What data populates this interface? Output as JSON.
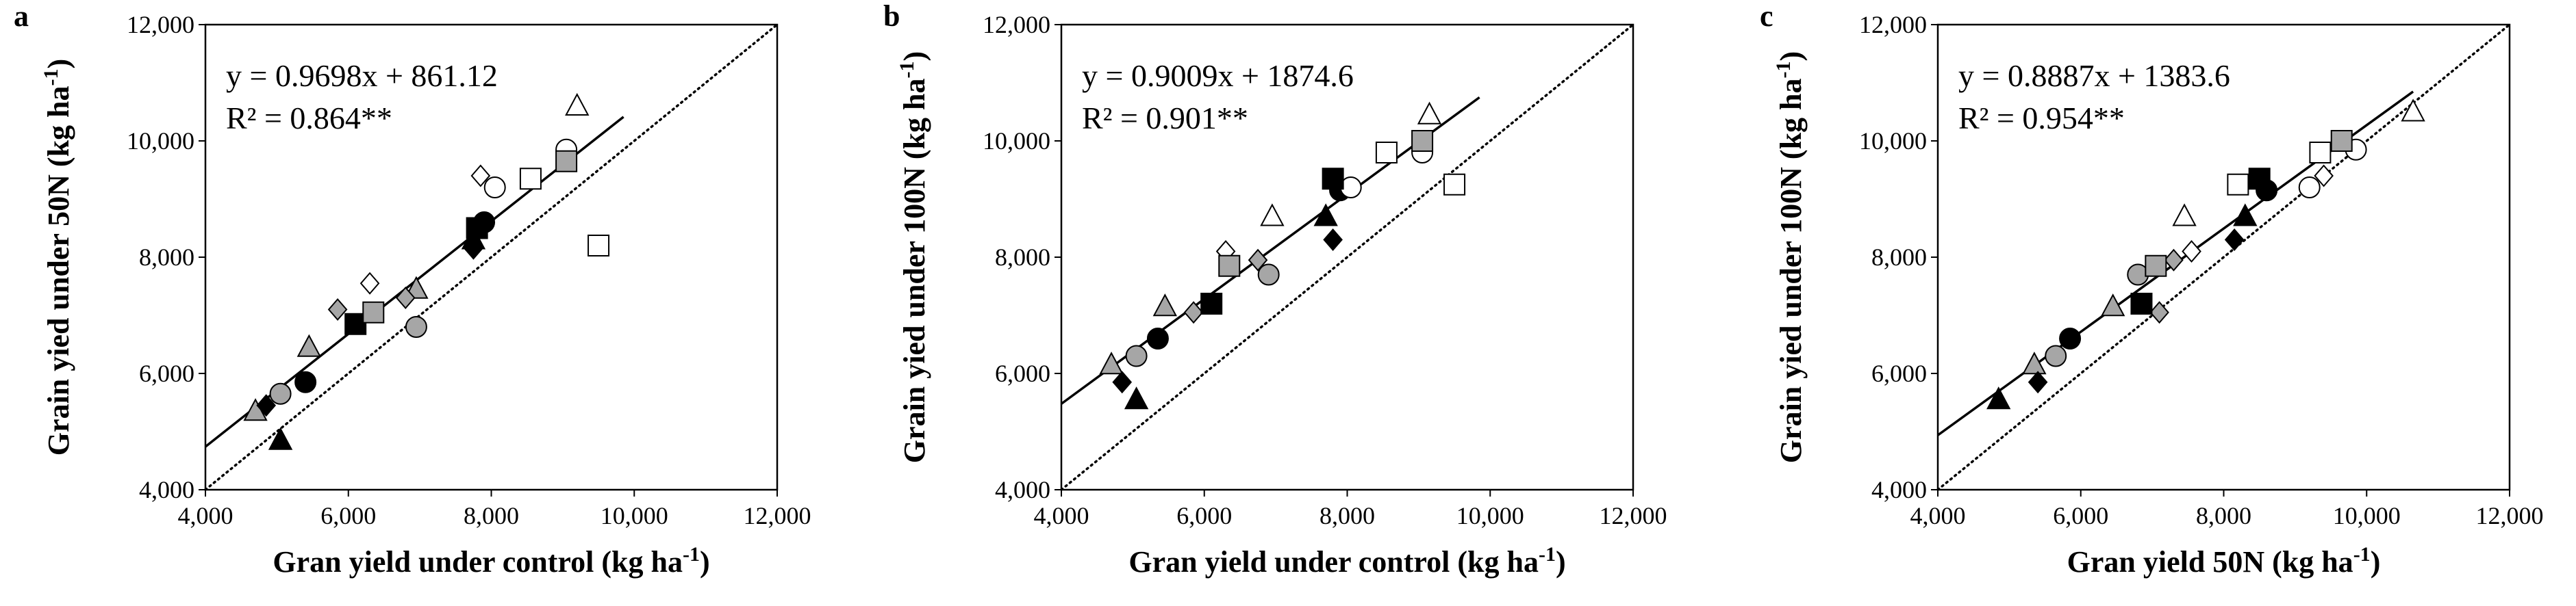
{
  "chart_data": [
    {
      "type": "scatter",
      "panel": "a",
      "xlabel": "Gran yield under control (kg ha",
      "ylabel": "Grain yied under 50N (kg ha",
      "unit_sup": "-1",
      "unit_close": ")",
      "xlim": [
        4000,
        12000
      ],
      "ylim": [
        4000,
        12000
      ],
      "xticks": [
        "4,000",
        "6,000",
        "8,000",
        "10,000",
        "12,000"
      ],
      "yticks": [
        "4,000",
        "6,000",
        "8,000",
        "10,000",
        "12,000"
      ],
      "grid": false,
      "equation": "y = 0.9698x + 861.12",
      "r2": "R² = 0.864**",
      "regression": {
        "slope": 0.9698,
        "intercept": 861.12,
        "x_range": [
          4000,
          9850
        ]
      },
      "reference_line": "1:1",
      "points": [
        {
          "x": 4700,
          "y": 5350,
          "marker": "triangle",
          "fill": "#a6a6a6"
        },
        {
          "x": 5050,
          "y": 4850,
          "marker": "triangle",
          "fill": "#000000"
        },
        {
          "x": 5450,
          "y": 6450,
          "marker": "triangle",
          "fill": "#a6a6a6"
        },
        {
          "x": 6950,
          "y": 7450,
          "marker": "triangle",
          "fill": "#a6a6a6"
        },
        {
          "x": 7750,
          "y": 8300,
          "marker": "triangle",
          "fill": "#000000"
        },
        {
          "x": 9200,
          "y": 10600,
          "marker": "triangle",
          "fill": "#ffffff"
        },
        {
          "x": 4850,
          "y": 5450,
          "marker": "diamond",
          "fill": "#000000"
        },
        {
          "x": 5850,
          "y": 7100,
          "marker": "diamond",
          "fill": "#a6a6a6"
        },
        {
          "x": 6300,
          "y": 7550,
          "marker": "diamond",
          "fill": "#ffffff"
        },
        {
          "x": 6800,
          "y": 7300,
          "marker": "diamond",
          "fill": "#a6a6a6"
        },
        {
          "x": 7750,
          "y": 8150,
          "marker": "diamond",
          "fill": "#000000"
        },
        {
          "x": 7850,
          "y": 9400,
          "marker": "diamond",
          "fill": "#ffffff"
        },
        {
          "x": 5050,
          "y": 5650,
          "marker": "circle",
          "fill": "#a6a6a6"
        },
        {
          "x": 5400,
          "y": 5850,
          "marker": "circle",
          "fill": "#000000"
        },
        {
          "x": 6950,
          "y": 6800,
          "marker": "circle",
          "fill": "#a6a6a6"
        },
        {
          "x": 7900,
          "y": 8600,
          "marker": "circle",
          "fill": "#000000"
        },
        {
          "x": 8050,
          "y": 9200,
          "marker": "circle",
          "fill": "#ffffff"
        },
        {
          "x": 9050,
          "y": 9850,
          "marker": "circle",
          "fill": "#ffffff"
        },
        {
          "x": 6100,
          "y": 6850,
          "marker": "square",
          "fill": "#000000"
        },
        {
          "x": 6350,
          "y": 7050,
          "marker": "square",
          "fill": "#a6a6a6"
        },
        {
          "x": 7800,
          "y": 8500,
          "marker": "square",
          "fill": "#000000"
        },
        {
          "x": 8550,
          "y": 9350,
          "marker": "square",
          "fill": "#ffffff"
        },
        {
          "x": 9050,
          "y": 9650,
          "marker": "square",
          "fill": "#a6a6a6"
        },
        {
          "x": 9500,
          "y": 8200,
          "marker": "square",
          "fill": "#ffffff"
        }
      ]
    },
    {
      "type": "scatter",
      "panel": "b",
      "xlabel": "Gran yield under control (kg ha",
      "ylabel": "Grain yied under 100N (kg ha",
      "unit_sup": "-1",
      "unit_close": ")",
      "xlim": [
        4000,
        12000
      ],
      "ylim": [
        4000,
        12000
      ],
      "xticks": [
        "4,000",
        "6,000",
        "8,000",
        "10,000",
        "12,000"
      ],
      "yticks": [
        "4,000",
        "6,000",
        "8,000",
        "10,000",
        "12,000"
      ],
      "grid": false,
      "equation": "y = 0.9009x + 1874.6",
      "r2": "R² = 0.901**",
      "regression": {
        "slope": 0.9009,
        "intercept": 1874.6,
        "x_range": [
          4000,
          9850
        ]
      },
      "reference_line": "1:1",
      "points": [
        {
          "x": 4700,
          "y": 6150,
          "marker": "triangle",
          "fill": "#a6a6a6"
        },
        {
          "x": 5050,
          "y": 5550,
          "marker": "triangle",
          "fill": "#000000"
        },
        {
          "x": 5450,
          "y": 7150,
          "marker": "triangle",
          "fill": "#a6a6a6"
        },
        {
          "x": 6950,
          "y": 8700,
          "marker": "triangle",
          "fill": "#ffffff"
        },
        {
          "x": 7700,
          "y": 8700,
          "marker": "triangle",
          "fill": "#000000"
        },
        {
          "x": 9150,
          "y": 10450,
          "marker": "triangle",
          "fill": "#ffffff"
        },
        {
          "x": 4850,
          "y": 5850,
          "marker": "diamond",
          "fill": "#000000"
        },
        {
          "x": 5850,
          "y": 7050,
          "marker": "diamond",
          "fill": "#a6a6a6"
        },
        {
          "x": 6300,
          "y": 8100,
          "marker": "diamond",
          "fill": "#ffffff"
        },
        {
          "x": 6750,
          "y": 7950,
          "marker": "diamond",
          "fill": "#a6a6a6"
        },
        {
          "x": 7800,
          "y": 8300,
          "marker": "diamond",
          "fill": "#000000"
        },
        {
          "x": 5050,
          "y": 6300,
          "marker": "circle",
          "fill": "#a6a6a6"
        },
        {
          "x": 5350,
          "y": 6600,
          "marker": "circle",
          "fill": "#000000"
        },
        {
          "x": 6900,
          "y": 7700,
          "marker": "circle",
          "fill": "#a6a6a6"
        },
        {
          "x": 7900,
          "y": 9150,
          "marker": "circle",
          "fill": "#000000"
        },
        {
          "x": 8050,
          "y": 9200,
          "marker": "circle",
          "fill": "#ffffff"
        },
        {
          "x": 9050,
          "y": 9800,
          "marker": "circle",
          "fill": "#ffffff"
        },
        {
          "x": 6100,
          "y": 7200,
          "marker": "square",
          "fill": "#000000"
        },
        {
          "x": 6350,
          "y": 7850,
          "marker": "square",
          "fill": "#a6a6a6"
        },
        {
          "x": 7800,
          "y": 9350,
          "marker": "square",
          "fill": "#000000"
        },
        {
          "x": 8550,
          "y": 9800,
          "marker": "square",
          "fill": "#ffffff"
        },
        {
          "x": 9050,
          "y": 10000,
          "marker": "square",
          "fill": "#a6a6a6"
        },
        {
          "x": 9500,
          "y": 9250,
          "marker": "square",
          "fill": "#ffffff"
        }
      ]
    },
    {
      "type": "scatter",
      "panel": "c",
      "xlabel": "Gran yield 50N (kg ha",
      "ylabel": "Grain yied under 100N (kg ha",
      "unit_sup": "-1",
      "unit_close": ")",
      "xlim": [
        4000,
        12000
      ],
      "ylim": [
        4000,
        12000
      ],
      "xticks": [
        "4,000",
        "6,000",
        "8,000",
        "10,000",
        "12,000"
      ],
      "yticks": [
        "4,000",
        "6,000",
        "8,000",
        "10,000",
        "12,000"
      ],
      "grid": false,
      "equation": "y = 0.8887x + 1383.6",
      "r2": "R² = 0.954**",
      "regression": {
        "slope": 0.8887,
        "intercept": 1383.6,
        "x_range": [
          4000,
          10650
        ]
      },
      "reference_line": "1:1",
      "points": [
        {
          "x": 4850,
          "y": 5550,
          "marker": "triangle",
          "fill": "#000000"
        },
        {
          "x": 5350,
          "y": 6150,
          "marker": "triangle",
          "fill": "#a6a6a6"
        },
        {
          "x": 6450,
          "y": 7150,
          "marker": "triangle",
          "fill": "#a6a6a6"
        },
        {
          "x": 7450,
          "y": 8700,
          "marker": "triangle",
          "fill": "#ffffff"
        },
        {
          "x": 8300,
          "y": 8700,
          "marker": "triangle",
          "fill": "#000000"
        },
        {
          "x": 10650,
          "y": 10500,
          "marker": "triangle",
          "fill": "#ffffff"
        },
        {
          "x": 5400,
          "y": 5850,
          "marker": "diamond",
          "fill": "#000000"
        },
        {
          "x": 7100,
          "y": 7050,
          "marker": "diamond",
          "fill": "#a6a6a6"
        },
        {
          "x": 7300,
          "y": 7950,
          "marker": "diamond",
          "fill": "#a6a6a6"
        },
        {
          "x": 7550,
          "y": 8100,
          "marker": "diamond",
          "fill": "#ffffff"
        },
        {
          "x": 8150,
          "y": 8300,
          "marker": "diamond",
          "fill": "#000000"
        },
        {
          "x": 9400,
          "y": 9400,
          "marker": "diamond",
          "fill": "#ffffff"
        },
        {
          "x": 5650,
          "y": 6300,
          "marker": "circle",
          "fill": "#a6a6a6"
        },
        {
          "x": 5850,
          "y": 6600,
          "marker": "circle",
          "fill": "#000000"
        },
        {
          "x": 6800,
          "y": 7700,
          "marker": "circle",
          "fill": "#a6a6a6"
        },
        {
          "x": 8600,
          "y": 9150,
          "marker": "circle",
          "fill": "#000000"
        },
        {
          "x": 9200,
          "y": 9200,
          "marker": "circle",
          "fill": "#ffffff"
        },
        {
          "x": 9850,
          "y": 9850,
          "marker": "circle",
          "fill": "#ffffff"
        },
        {
          "x": 6850,
          "y": 7200,
          "marker": "square",
          "fill": "#000000"
        },
        {
          "x": 7050,
          "y": 7850,
          "marker": "square",
          "fill": "#a6a6a6"
        },
        {
          "x": 8200,
          "y": 9250,
          "marker": "square",
          "fill": "#ffffff"
        },
        {
          "x": 8500,
          "y": 9350,
          "marker": "square",
          "fill": "#000000"
        },
        {
          "x": 9350,
          "y": 9800,
          "marker": "square",
          "fill": "#ffffff"
        },
        {
          "x": 9650,
          "y": 10000,
          "marker": "square",
          "fill": "#a6a6a6"
        }
      ]
    }
  ]
}
